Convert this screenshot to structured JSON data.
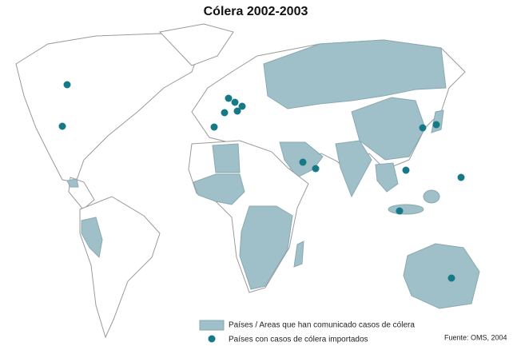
{
  "title": "Cólera 2002-2003",
  "legend": {
    "items": [
      "Países / Areas que han comunicado casos de cólera",
      "Países con casos de cólera importados"
    ]
  },
  "source": "Fuente: OMS, 2004"
}
